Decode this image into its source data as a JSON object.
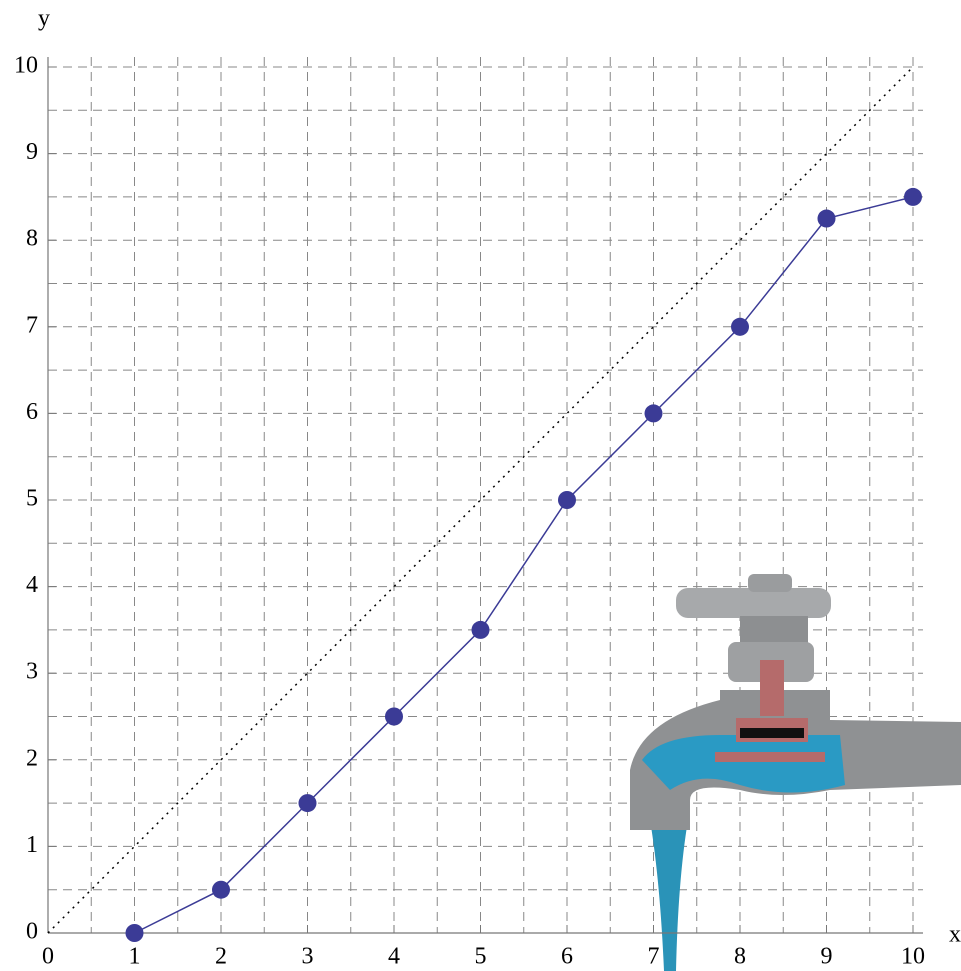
{
  "chart_data": {
    "type": "line",
    "x": [
      1,
      2,
      3,
      4,
      5,
      6,
      7,
      8,
      9,
      10
    ],
    "series": [
      {
        "color": "#3b3b96",
        "values": [
          0,
          0.5,
          1.5,
          2.5,
          3.5,
          5,
          6,
          7,
          8.25,
          8.5
        ]
      }
    ],
    "reference_line": {
      "x": [
        0,
        10
      ],
      "y": [
        0,
        10
      ],
      "style": "dotted",
      "color": "#000000"
    },
    "xlabel": "x",
    "ylabel": "y",
    "xlim": [
      0,
      10
    ],
    "ylim": [
      0,
      10
    ],
    "xticks": [
      0,
      1,
      2,
      3,
      4,
      5,
      6,
      7,
      8,
      9,
      10
    ],
    "yticks": [
      0,
      1,
      2,
      3,
      4,
      5,
      6,
      7,
      8,
      9,
      10
    ],
    "xminorticks": [
      0.5,
      1.5,
      2.5,
      3.5,
      4.5,
      5.5,
      6.5,
      7.5,
      8.5,
      9.5
    ],
    "yminorticks": [
      0.5,
      1.5,
      2.5,
      3.5,
      4.5,
      5.5,
      6.5,
      7.5,
      8.5,
      9.5
    ],
    "grid": true
  }
}
